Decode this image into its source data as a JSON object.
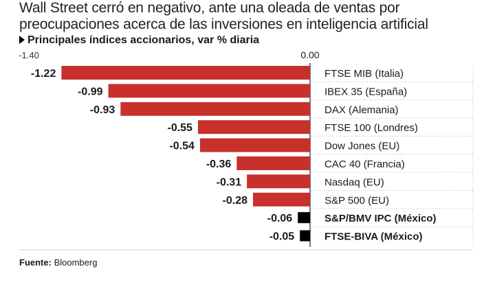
{
  "header": {
    "title": "Wall Street cerró en negativo, ante una oleada de ventas por preocupaciones acerca de las inversiones en inteligencia artificial",
    "subtitle": "Principales índices accionarios, var % diaria"
  },
  "footer": {
    "source_label": "Fuente:",
    "source_value": "Bloomberg"
  },
  "colors": {
    "negative_bar": "#c8302b",
    "mexico_bar": "#000000",
    "gridline": "#bbbbbb"
  },
  "chart_data": {
    "type": "bar",
    "orientation": "horizontal",
    "title": "Principales índices accionarios, var % diaria",
    "xlim": [
      -1.4,
      0.0
    ],
    "axis_tick_labels": [
      "-1.40",
      "0.00"
    ],
    "categories": [
      "FTSE MIB (Italia)",
      "IBEX 35 (España)",
      "DAX (Alemania)",
      "FTSE 100 (Londres)",
      "Dow Jones (EU)",
      "CAC 40 (Francia)",
      "Nasdaq (EU)",
      "S&P 500 (EU)",
      "S&P/BMV IPC (México)",
      "FTSE-BIVA (México)"
    ],
    "values": [
      -1.22,
      -0.99,
      -0.93,
      -0.55,
      -0.54,
      -0.36,
      -0.31,
      -0.28,
      -0.06,
      -0.05
    ],
    "value_labels": [
      "-1.22",
      "-0.99",
      "-0.93",
      "-0.55",
      "-0.54",
      "-0.36",
      "-0.31",
      "-0.28",
      "-0.06",
      "-0.05"
    ],
    "highlight": [
      false,
      false,
      false,
      false,
      false,
      false,
      false,
      false,
      true,
      true
    ]
  }
}
